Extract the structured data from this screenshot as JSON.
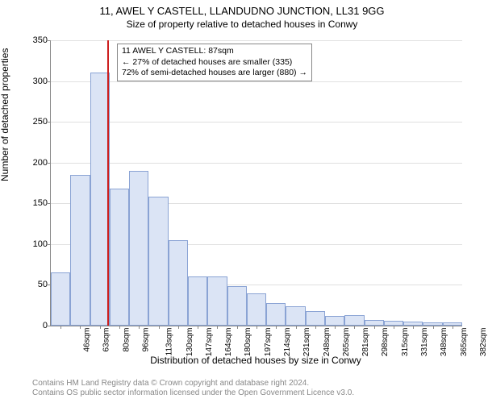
{
  "title": "11, AWEL Y CASTELL, LLANDUDNO JUNCTION, LL31 9GG",
  "subtitle": "Size of property relative to detached houses in Conwy",
  "y_axis_label": "Number of detached properties",
  "x_axis_label": "Distribution of detached houses by size in Conwy",
  "footer_line1": "Contains HM Land Registry data © Crown copyright and database right 2024.",
  "footer_line2": "Contains OS public sector information licensed under the Open Government Licence v3.0.",
  "chart": {
    "type": "histogram",
    "ylim": [
      0,
      350
    ],
    "ytick_step": 50,
    "bar_fill": "#dbe4f5",
    "bar_border": "#8aa3d4",
    "grid_color": "#e0e0e0",
    "ref_line_color": "#cc1e1e",
    "ref_line_x": 87,
    "x_start": 38,
    "x_bin_width": 17,
    "x_tick_labels": [
      "46sqm",
      "63sqm",
      "80sqm",
      "96sqm",
      "113sqm",
      "130sqm",
      "147sqm",
      "164sqm",
      "180sqm",
      "197sqm",
      "214sqm",
      "231sqm",
      "248sqm",
      "265sqm",
      "281sqm",
      "298sqm",
      "315sqm",
      "331sqm",
      "348sqm",
      "365sqm",
      "382sqm"
    ],
    "bars": [
      65,
      185,
      310,
      168,
      190,
      158,
      105,
      60,
      60,
      48,
      40,
      28,
      24,
      18,
      12,
      13,
      7,
      6,
      5,
      4,
      4
    ],
    "annotation": {
      "line1": "11 AWEL Y CASTELL: 87sqm",
      "line2": "← 27% of detached houses are smaller (335)",
      "line3": "72% of semi-detached houses are larger (880) →"
    }
  }
}
